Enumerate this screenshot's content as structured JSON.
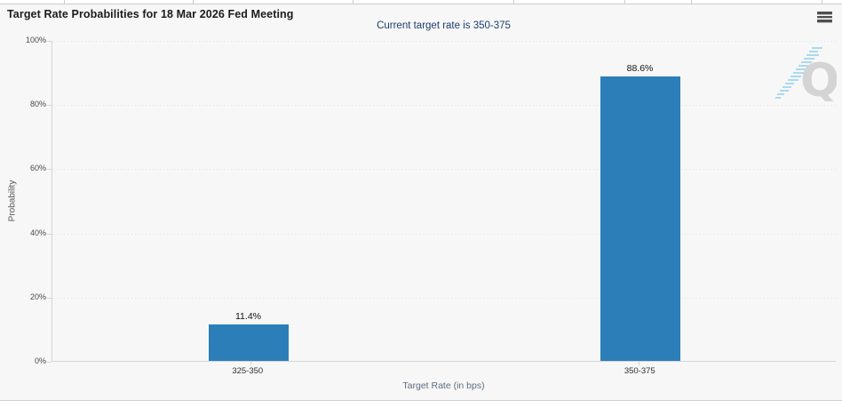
{
  "header": {
    "title": "Target Rate Probabilities for 18 Mar 2026 Fed Meeting",
    "menu_icon": "hamburger-menu"
  },
  "subtitle": "Current target rate is 350-375",
  "watermark": {
    "letter": "Q"
  },
  "chart_data": {
    "type": "bar",
    "title": "Target Rate Probabilities for 18 Mar 2026 Fed Meeting",
    "subtitle": "Current target rate is 350-375",
    "categories": [
      "325-350",
      "350-375"
    ],
    "values": [
      11.4,
      88.6
    ],
    "bar_labels": [
      "11.4%",
      "88.6%"
    ],
    "xlabel": "Target Rate (in bps)",
    "ylabel": "Probability",
    "ylim": [
      0,
      100
    ],
    "ytick_labels": [
      "0%",
      "20%",
      "40%",
      "60%",
      "80%",
      "100%"
    ],
    "grid": "horizontal-dotted",
    "legend": "none",
    "bar_color": "#2b7eb8"
  },
  "colors": {
    "bar": "#2b7eb8",
    "subtitle_text": "#1e3e6c",
    "panel_bg": "#f7f7f7",
    "axis_line": "#d4d5d6",
    "title_text": "#1b1b1b"
  }
}
